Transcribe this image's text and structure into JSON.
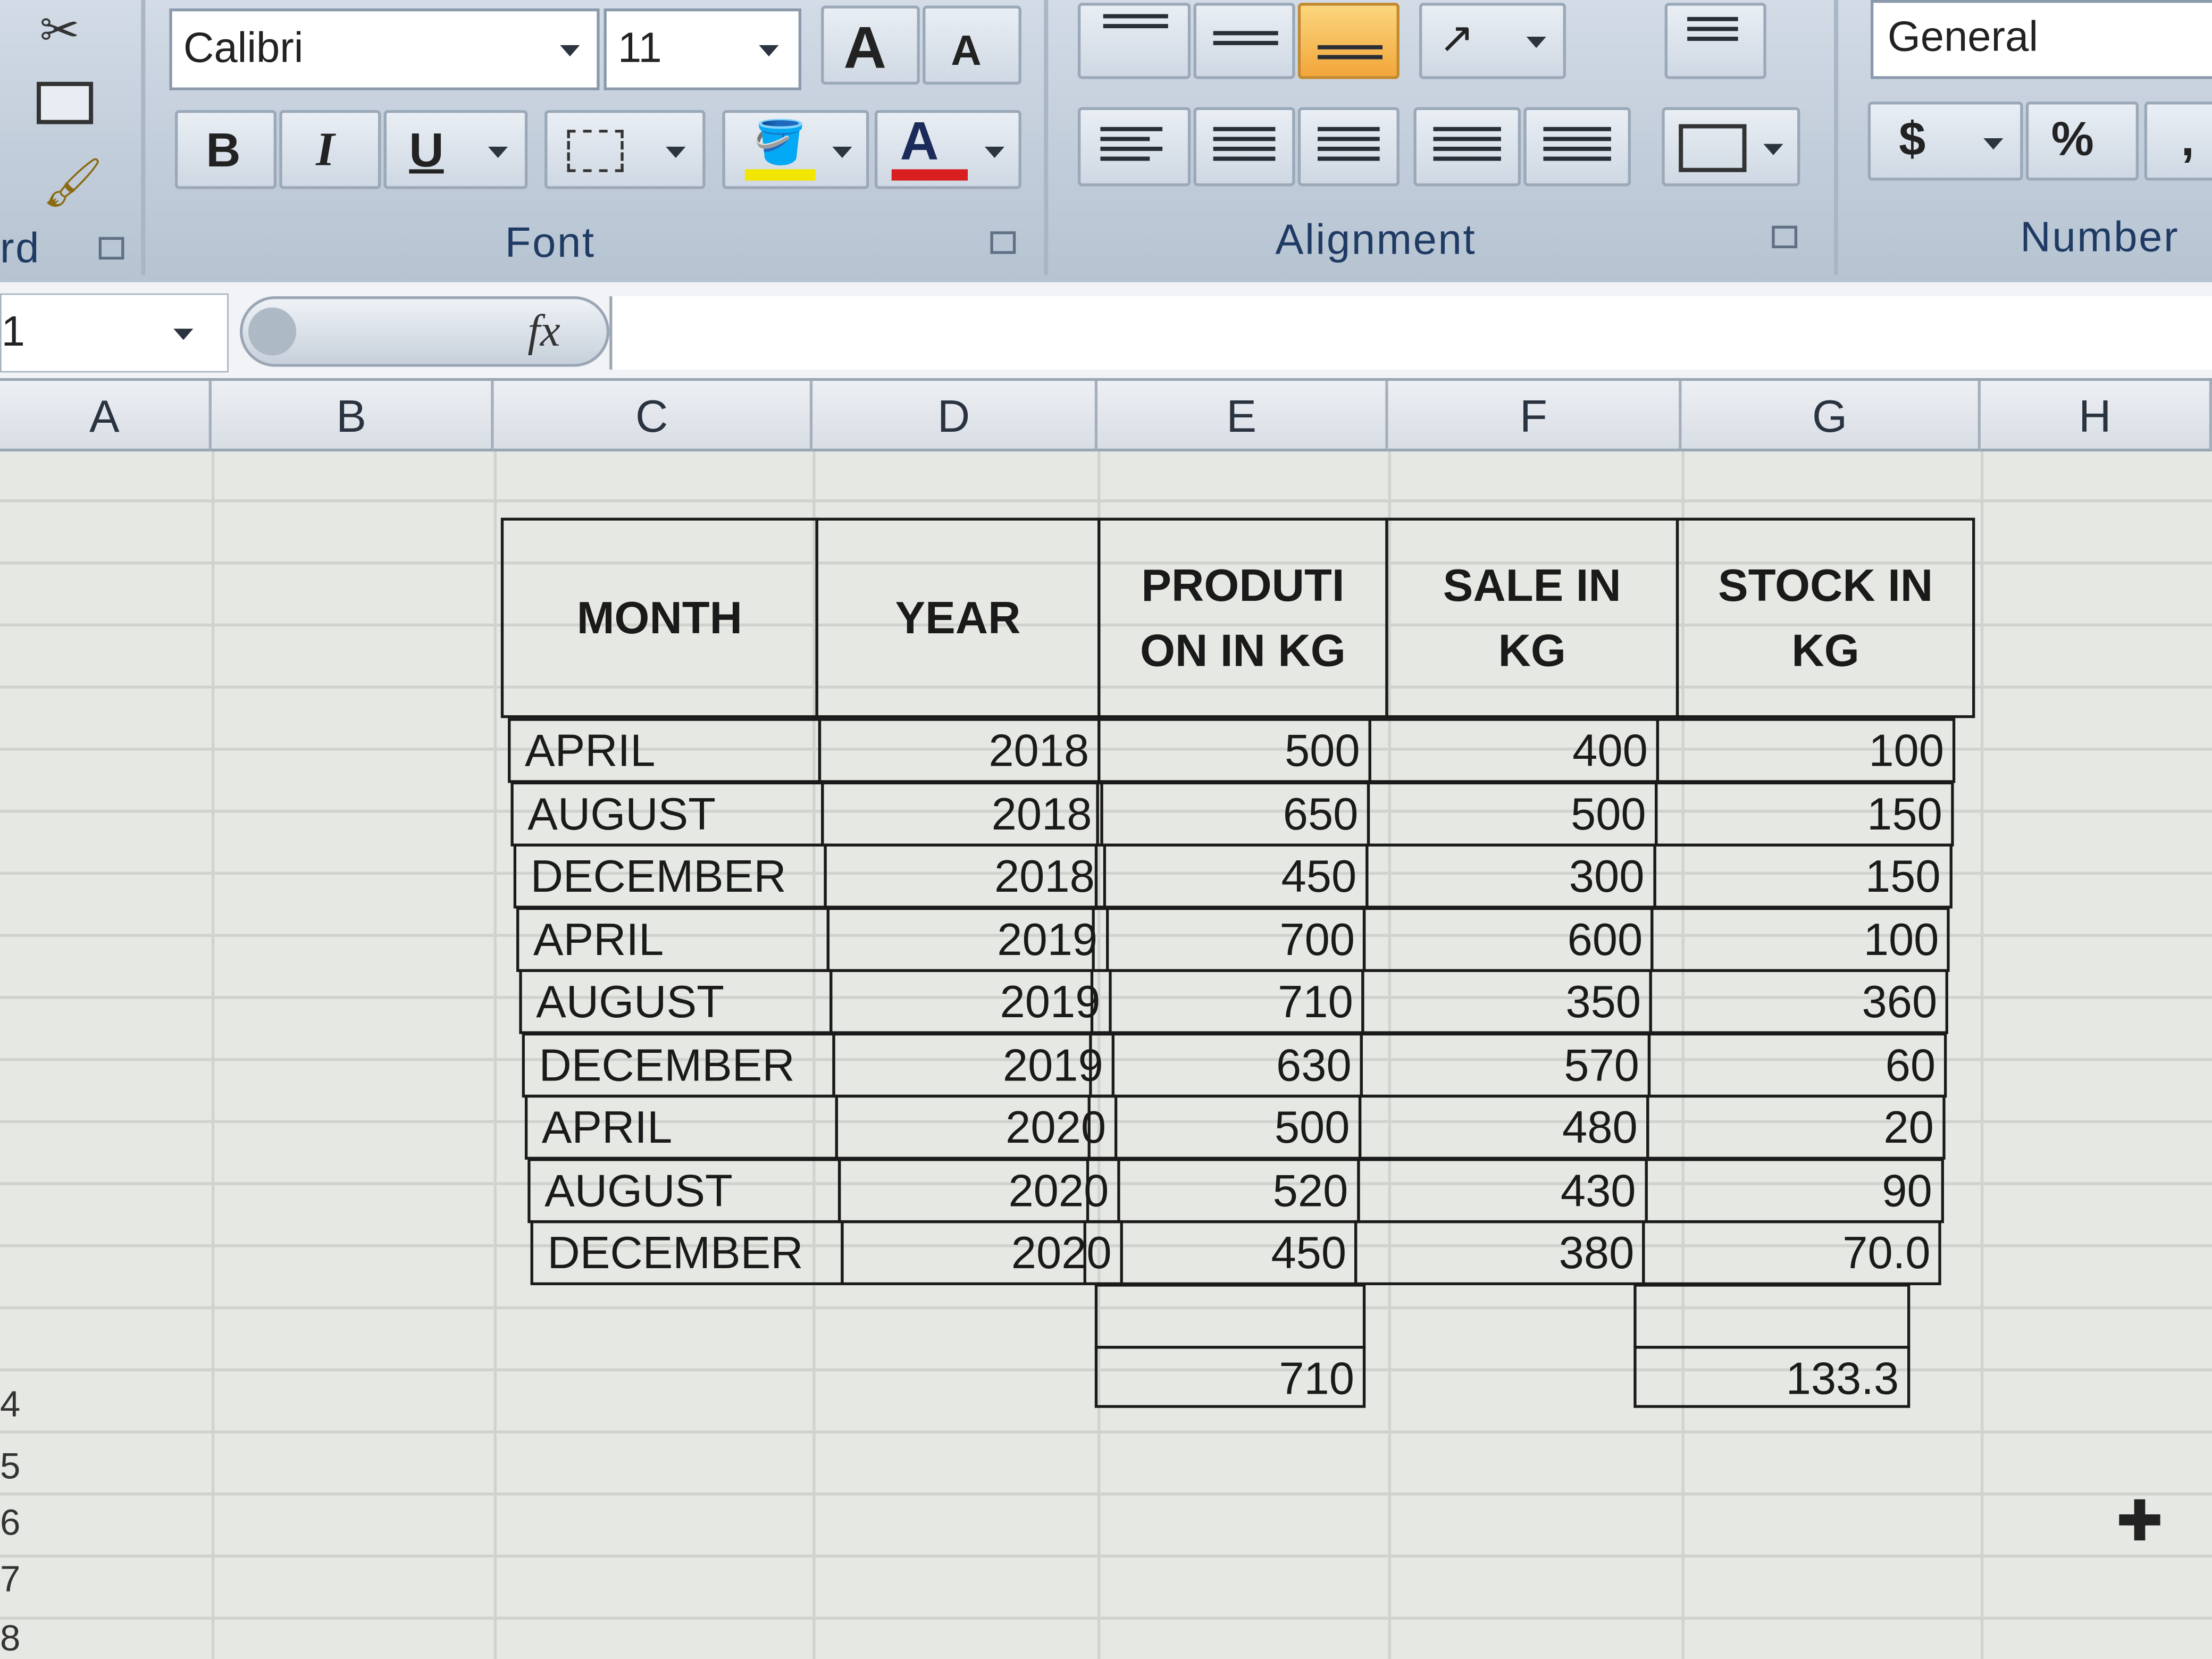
{
  "ribbon": {
    "font_name": "Calibri",
    "font_size": "11",
    "bold_label": "B",
    "italic_label": "I",
    "underline_label": "U",
    "font_color_label": "A",
    "grow_font_label": "A",
    "shrink_font_label": "A",
    "font_group": "Font",
    "alignment_group": "Alignment",
    "clipboard_group": "rd",
    "number_group": "Number",
    "number_format": "General",
    "currency_label": "$",
    "percent_label": "%",
    "comma_label": ",",
    "fill_color": "#f2e600",
    "font_color": "#d81e1e"
  },
  "formula_bar": {
    "name_box": "1",
    "fx_label": "fx"
  },
  "columns": [
    "A",
    "B",
    "C",
    "D",
    "E",
    "F",
    "G",
    "H"
  ],
  "row_numbers": [
    "4",
    "5",
    "6",
    "7",
    "8"
  ],
  "table": {
    "headers": {
      "month": "MONTH",
      "year": "YEAR",
      "production_line1": "PRODUTI",
      "production_line2": "ON IN KG",
      "sale_line1": "SALE IN",
      "sale_line2": "KG",
      "stock_line1": "STOCK IN",
      "stock_line2": "KG"
    },
    "rows": [
      [
        "APRIL",
        "2018",
        "500",
        "400",
        "100"
      ],
      [
        "AUGUST",
        "2018",
        "650",
        "500",
        "150"
      ],
      [
        "DECEMBER",
        "2018",
        "450",
        "300",
        "150"
      ],
      [
        "APRIL",
        "2019",
        "700",
        "600",
        "100"
      ],
      [
        "AUGUST",
        "2019",
        "710",
        "350",
        "360"
      ],
      [
        "DECEMBER",
        "2019",
        "630",
        "570",
        "60"
      ],
      [
        "APRIL",
        "2020",
        "500",
        "480",
        "20"
      ],
      [
        "AUGUST",
        "2020",
        "520",
        "430",
        "90"
      ],
      [
        "DECEMBER",
        "2020",
        "450",
        "380",
        "70.0"
      ]
    ],
    "production_total": "710",
    "stock_total": "133.3"
  }
}
